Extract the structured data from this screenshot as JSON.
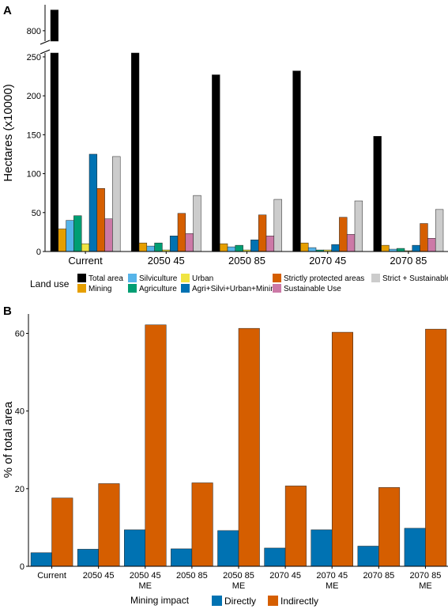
{
  "panels": {
    "a": {
      "label": "A"
    },
    "b": {
      "label": "B"
    }
  },
  "chart_data": [
    {
      "type": "bar",
      "panel": "A",
      "ylabel": "Hectares (x10000)",
      "xlabel": "",
      "y_axis_break": true,
      "upper_ylim": [
        790,
        825
      ],
      "upper_ticks": [
        800
      ],
      "lower_ylim": [
        0,
        255
      ],
      "lower_ticks": [
        0,
        50,
        100,
        150,
        200,
        250
      ],
      "categories": [
        "Current",
        "2050 45",
        "2050 85",
        "2070 45",
        "2070 85"
      ],
      "legend_title": "Land use",
      "legend_position": "bottom",
      "series": [
        {
          "name": "Total area",
          "color": "#000000",
          "values": [
            820,
            260,
            227,
            232,
            148
          ]
        },
        {
          "name": "Mining",
          "color": "#E69F00",
          "values": [
            29,
            11,
            10,
            11,
            8
          ]
        },
        {
          "name": "Silviculture",
          "color": "#56B4E9",
          "values": [
            40,
            7,
            6,
            5,
            3
          ]
        },
        {
          "name": "Agriculture",
          "color": "#009E73",
          "values": [
            46,
            11,
            8,
            2,
            4
          ]
        },
        {
          "name": "Urban",
          "color": "#F0E442",
          "values": [
            10,
            2,
            2,
            2,
            1
          ]
        },
        {
          "name": "Agri+Silvi+Urban+Mining",
          "color": "#0072B2",
          "values": [
            125,
            20,
            15,
            9,
            8
          ]
        },
        {
          "name": "Strictly protected areas",
          "color": "#D55E00",
          "values": [
            81,
            49,
            47,
            44,
            36
          ]
        },
        {
          "name": "Sustainable Use",
          "color": "#CC79A7",
          "values": [
            42,
            23,
            20,
            22,
            17
          ]
        },
        {
          "name": "Strict + Sustainable",
          "color": "#CCCCCC",
          "values": [
            122,
            72,
            67,
            65,
            54
          ]
        }
      ],
      "legend_order": [
        "Total area",
        "Silviculture",
        "Urban",
        "Strictly protected areas",
        "Strict + Sustainable",
        "Mining",
        "Agriculture",
        "Agri+Silvi+Urban+Mining",
        "Sustainable Use"
      ]
    },
    {
      "type": "bar",
      "panel": "B",
      "ylabel": "% of total area",
      "xlabel": "",
      "ylim": [
        0,
        65
      ],
      "yticks": [
        0,
        20,
        40,
        60
      ],
      "categories": [
        "Current",
        "2050 45",
        "2050 45\nME",
        "2050 85",
        "2050 85\nME",
        "2070 45",
        "2070 45\nME",
        "2070 85",
        "2070 85\nME"
      ],
      "legend_title": "Mining impact",
      "legend_position": "bottom",
      "series": [
        {
          "name": "Directly",
          "color": "#0072B2",
          "values": [
            3.5,
            4.4,
            9.4,
            4.5,
            9.2,
            4.7,
            9.4,
            5.2,
            9.8
          ]
        },
        {
          "name": "Indirectly",
          "color": "#D55E00",
          "values": [
            17.6,
            21.3,
            62.2,
            21.5,
            61.3,
            20.7,
            60.3,
            20.3,
            61.1
          ]
        }
      ]
    }
  ]
}
